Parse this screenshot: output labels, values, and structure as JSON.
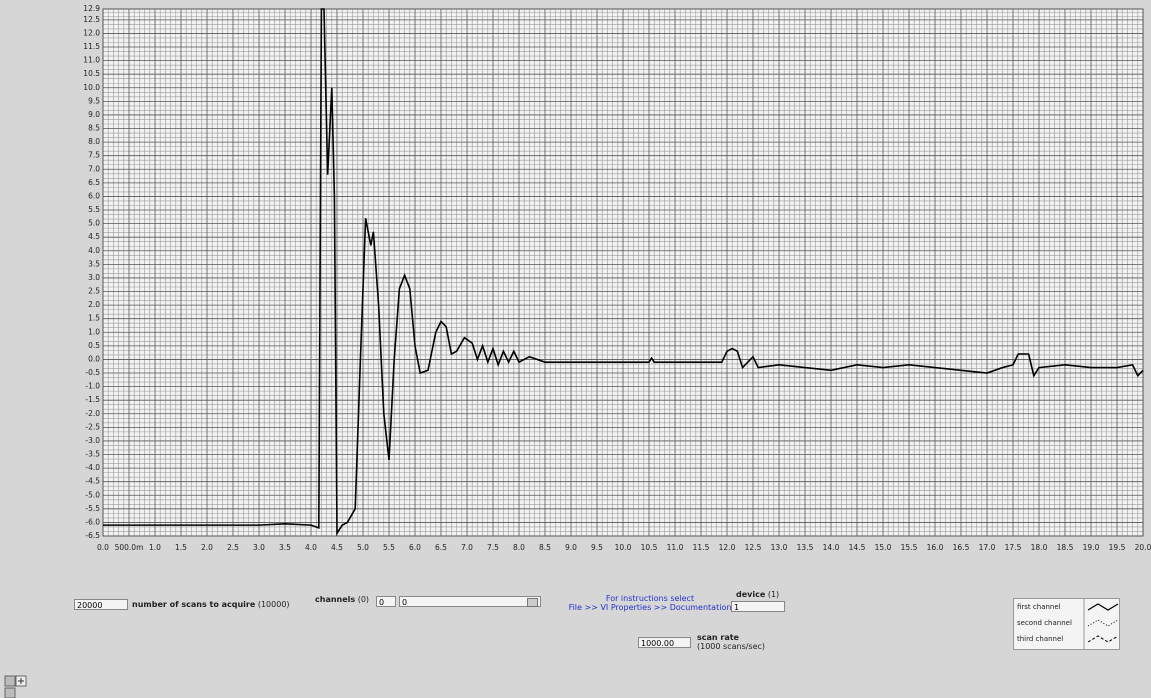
{
  "chart_data": {
    "type": "line",
    "xlim": [
      0,
      20
    ],
    "ylim": [
      -6.5,
      12.9
    ],
    "xticks": [
      {
        "value": 0,
        "label": "0.0"
      },
      {
        "value": 0.5,
        "label": "500.0m"
      },
      {
        "value": 1,
        "label": "1.0"
      },
      1.5,
      {
        "value": 2,
        "label": "2.0"
      },
      2.5,
      {
        "value": 3,
        "label": "3.0"
      },
      3.5,
      {
        "value": 4,
        "label": "4.0"
      },
      4.5,
      {
        "value": 5,
        "label": "5.0"
      },
      5.5,
      {
        "value": 6,
        "label": "6.0"
      },
      6.5,
      {
        "value": 7,
        "label": "7.0"
      },
      7.5,
      {
        "value": 8,
        "label": "8.0"
      },
      8.5,
      {
        "value": 9,
        "label": "9.0"
      },
      9.5,
      {
        "value": 10,
        "label": "10.0"
      },
      10.5,
      {
        "value": 11,
        "label": "11.0"
      },
      11.5,
      {
        "value": 12,
        "label": "12.0"
      },
      12.5,
      {
        "value": 13,
        "label": "13.0"
      },
      13.5,
      {
        "value": 14,
        "label": "14.0"
      },
      14.5,
      {
        "value": 15,
        "label": "15.0"
      },
      15.5,
      {
        "value": 16,
        "label": "16.0"
      },
      16.5,
      {
        "value": 17,
        "label": "17.0"
      },
      17.5,
      {
        "value": 18,
        "label": "18.0"
      },
      18.5,
      {
        "value": 19,
        "label": "19.0"
      },
      19.5,
      {
        "value": 20,
        "label": "20.0"
      }
    ],
    "yticks": [
      -6.5,
      {
        "value": -6,
        "label": "-6.0"
      },
      -5.5,
      {
        "value": -5,
        "label": "-5.0"
      },
      -4.5,
      {
        "value": -4,
        "label": "-4.0"
      },
      -3.5,
      {
        "value": -3,
        "label": "-3.0"
      },
      -2.5,
      {
        "value": -2,
        "label": "-2.0"
      },
      -1.5,
      {
        "value": -1,
        "label": "-1.0"
      },
      -0.5,
      {
        "value": 0,
        "label": "0.0"
      },
      0.5,
      {
        "value": 1,
        "label": "1.0"
      },
      1.5,
      {
        "value": 2,
        "label": "2.0"
      },
      2.5,
      {
        "value": 3,
        "label": "3.0"
      },
      3.5,
      {
        "value": 4,
        "label": "4.0"
      },
      4.5,
      {
        "value": 5,
        "label": "5.0"
      },
      5.5,
      {
        "value": 6,
        "label": "6.0"
      },
      6.5,
      {
        "value": 7,
        "label": "7.0"
      },
      7.5,
      {
        "value": 8,
        "label": "8.0"
      },
      8.5,
      {
        "value": 9,
        "label": "9.0"
      },
      9.5,
      {
        "value": 10,
        "label": "10.0"
      },
      10.5,
      {
        "value": 11,
        "label": "11.0"
      },
      11.5,
      {
        "value": 12,
        "label": "12.0"
      },
      12.5,
      12.9
    ],
    "grid": true,
    "x": [
      0,
      3,
      3.5,
      4,
      4.15,
      4.2,
      4.25,
      4.32,
      4.4,
      4.45,
      4.5,
      4.6,
      4.7,
      4.85,
      4.95,
      5.05,
      5.15,
      5.2,
      5.3,
      5.4,
      5.5,
      5.6,
      5.7,
      5.8,
      5.9,
      6,
      6.1,
      6.25,
      6.4,
      6.5,
      6.6,
      6.7,
      6.8,
      6.95,
      7.1,
      7.2,
      7.3,
      7.4,
      7.5,
      7.6,
      7.7,
      7.8,
      7.9,
      8,
      8.2,
      8.5,
      9,
      10,
      10.5,
      10.55,
      10.6,
      11.5,
      11.9,
      12,
      12.1,
      12.2,
      12.3,
      12.5,
      12.6,
      13,
      13.5,
      14,
      14.5,
      15,
      15.5,
      16,
      16.5,
      17,
      17.3,
      17.5,
      17.6,
      17.8,
      17.9,
      18,
      18.5,
      19,
      19.5,
      19.8,
      19.9,
      20
    ],
    "series": [
      {
        "name": "first channel",
        "color": "#000000",
        "values": [
          -6.1,
          -6.1,
          -6.05,
          -6.1,
          -6.2,
          12.9,
          12.9,
          6.8,
          10,
          6,
          -6.4,
          -6.1,
          -6,
          -5.5,
          0,
          5.2,
          4.2,
          4.7,
          2,
          -2,
          -3.7,
          0,
          2.6,
          3.1,
          2.6,
          0.5,
          -0.5,
          -0.4,
          1,
          1.4,
          1.2,
          0.2,
          0.3,
          0.8,
          0.6,
          0,
          0.5,
          -0.1,
          0.4,
          -0.2,
          0.3,
          -0.1,
          0.3,
          -0.1,
          0.1,
          -0.1,
          -0.1,
          -0.1,
          -0.1,
          0.05,
          -0.1,
          -0.1,
          -0.1,
          0.3,
          0.4,
          0.3,
          -0.3,
          0.1,
          -0.3,
          -0.2,
          -0.3,
          -0.4,
          -0.2,
          -0.3,
          -0.2,
          -0.3,
          -0.4,
          -0.5,
          -0.3,
          -0.2,
          0.2,
          0.2,
          -0.6,
          -0.3,
          -0.2,
          -0.3,
          -0.3,
          -0.2,
          -0.6,
          -0.4
        ]
      }
    ]
  },
  "controls": {
    "scans": {
      "value": "20000",
      "label": "number of scans to acquire",
      "default": "(10000)"
    },
    "channels": {
      "label": "channels",
      "default": "(0)",
      "index": "0",
      "list": "0"
    },
    "instructions": [
      "For instructions select",
      "File >> VI Properties >> Documentation"
    ],
    "device": {
      "label": "device",
      "default": "(1)",
      "value": "1"
    },
    "scan_rate": {
      "value": "1000.00",
      "label": "scan rate",
      "unit": "(1000 scans/sec)"
    }
  },
  "plot_legend": {
    "entries": [
      "first channel",
      "second channel",
      "third channel"
    ]
  }
}
